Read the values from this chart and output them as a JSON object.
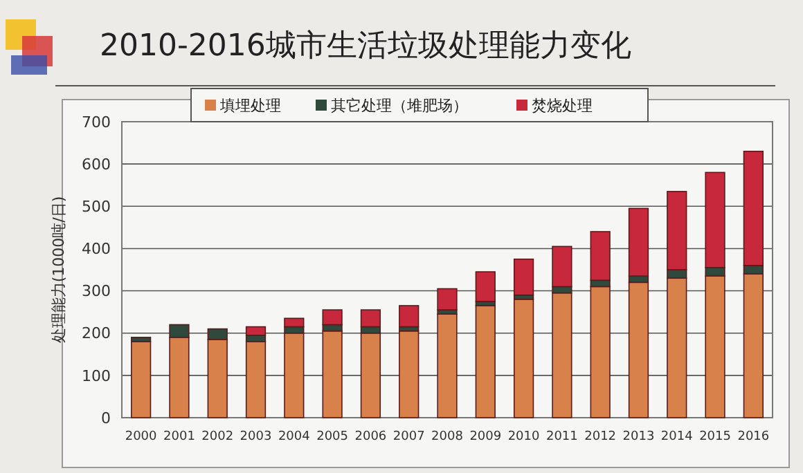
{
  "chart_data": {
    "type": "bar",
    "stacked": true,
    "title": "2010-2016城市生活垃圾处理能力变化",
    "ylabel": "处理能力(1000吨/日)",
    "categories": [
      "2000",
      "2001",
      "2002",
      "2003",
      "2004",
      "2005",
      "2006",
      "2007",
      "2008",
      "2009",
      "2010",
      "2011",
      "2012",
      "2013",
      "2014",
      "2015",
      "2016"
    ],
    "series": [
      {
        "name": "填埋处理",
        "color": "#d9814a",
        "values": [
          180,
          190,
          185,
          180,
          200,
          205,
          200,
          205,
          245,
          265,
          280,
          295,
          310,
          320,
          330,
          335,
          340
        ]
      },
      {
        "name": "其它处理（堆肥场）",
        "color": "#2f4a3c",
        "values": [
          10,
          30,
          25,
          15,
          15,
          15,
          15,
          10,
          10,
          10,
          10,
          15,
          15,
          15,
          20,
          20,
          20
        ]
      },
      {
        "name": "焚烧处理",
        "color": "#c8283c",
        "values": [
          0,
          0,
          0,
          20,
          20,
          35,
          40,
          50,
          50,
          70,
          85,
          95,
          115,
          160,
          185,
          225,
          270
        ]
      }
    ],
    "ylim": [
      0,
      700
    ],
    "yticks": [
      0,
      100,
      200,
      300,
      400,
      500,
      600,
      700
    ],
    "grid": "y",
    "legend": "top"
  }
}
